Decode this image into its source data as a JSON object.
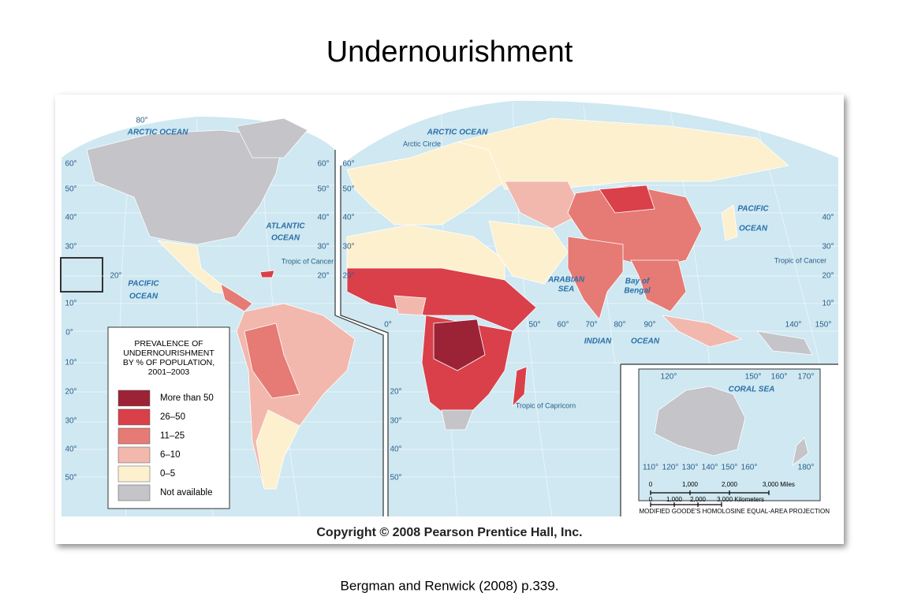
{
  "header": {
    "title": "Undernourishment"
  },
  "legend": {
    "title": [
      "PREVALENCE OF",
      "UNDERNOURISHMENT",
      "BY % OF POPULATION,",
      "2001–2003"
    ],
    "items": [
      {
        "label": "More than 50",
        "color": "#9b2335"
      },
      {
        "label": "26–50",
        "color": "#d9404a"
      },
      {
        "label": "11–25",
        "color": "#e57b74"
      },
      {
        "label": "6–10",
        "color": "#f2b8ae"
      },
      {
        "label": "0–5",
        "color": "#fdf0cf"
      },
      {
        "label": "Not available",
        "color": "#c4c4c9"
      }
    ]
  },
  "map_labels": {
    "oceans": [
      [
        "ARCTIC OCEAN"
      ],
      [
        "ARCTIC OCEAN"
      ],
      [
        "ATLANTIC",
        "OCEAN"
      ],
      [
        "PACIFIC",
        "OCEAN"
      ],
      [
        "PACIFIC",
        "OCEAN"
      ],
      [
        "INDIAN",
        "OCEAN"
      ],
      [
        "ARABIAN",
        "SEA"
      ],
      [
        "Bay of",
        "Bengal"
      ],
      [
        "CORAL SEA"
      ]
    ],
    "lines": [
      "Arctic Circle",
      "Tropic of Cancer",
      "Tropic of Cancer",
      "Tropic of Capricorn"
    ],
    "degrees": [
      "80°",
      "60°",
      "50°",
      "40°",
      "30°",
      "20°",
      "10°",
      "0°",
      "10°",
      "20°",
      "30°",
      "40°",
      "50°",
      "60°",
      "50°",
      "40°",
      "30°",
      "20°",
      "60°",
      "50°",
      "40°",
      "30°",
      "20°",
      "40°",
      "30°",
      "20°",
      "10°",
      "0°",
      "50°",
      "60°",
      "70°",
      "80°",
      "90°",
      "140°",
      "150°",
      "20°",
      "30°",
      "40°",
      "50°",
      "120°",
      "150°",
      "160°",
      "170°",
      "110°",
      "120°",
      "130°",
      "140°",
      "150°",
      "160°",
      "180°"
    ]
  },
  "scale": {
    "miles": [
      "0",
      "1,000",
      "2,000",
      "3,000 Miles"
    ],
    "km": [
      "0",
      "1,000",
      "2,000",
      "3,000 Kilometers"
    ]
  },
  "projection": "MODIFIED GOODE'S HOMOLOSINE EQUAL-AREA PROJECTION",
  "copyright": "Copyright © 2008 Pearson Prentice Hall, Inc.",
  "citation": "Bergman and Renwick (2008) p.339."
}
